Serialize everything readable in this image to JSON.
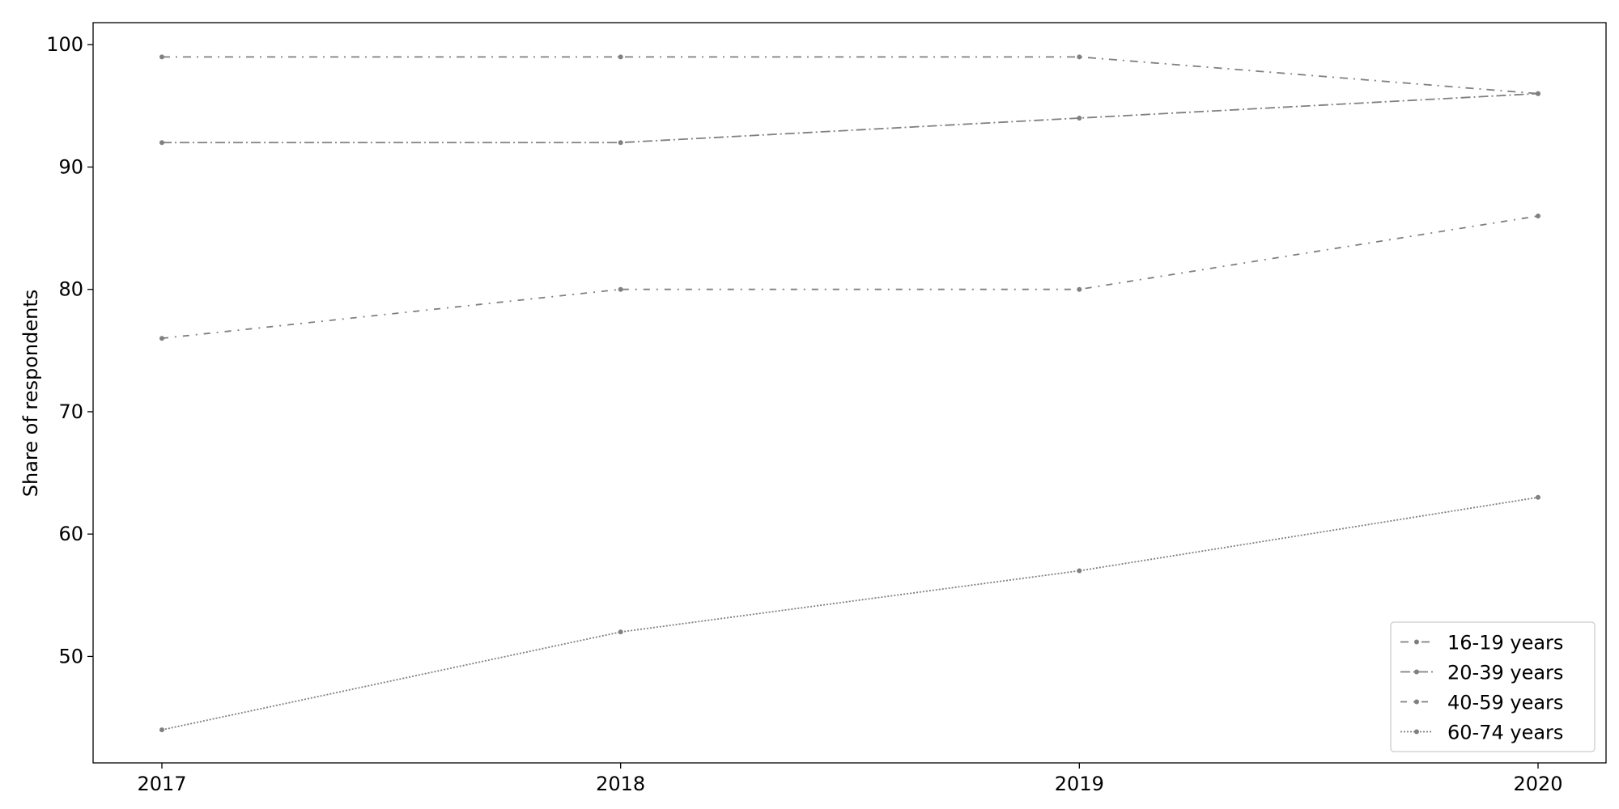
{
  "chart_data": {
    "type": "line",
    "x": [
      "2017",
      "2018",
      "2019",
      "2020"
    ],
    "ylabel": "Share of respondents",
    "xlabel": "",
    "ylim": [
      41.3,
      101.8
    ],
    "yticks": [
      50,
      60,
      70,
      80,
      90,
      100
    ],
    "grid": false,
    "legend_position": "bottom-right",
    "line_color": "#808080",
    "series": [
      {
        "name": "16-19 years",
        "values": [
          99,
          99,
          99,
          96
        ],
        "dash": "dash-dot-wide"
      },
      {
        "name": "20-39 years",
        "values": [
          92,
          92,
          94,
          96
        ],
        "dash": "dash-dot"
      },
      {
        "name": "40-59 years",
        "values": [
          76,
          80,
          80,
          86
        ],
        "dash": "dash-dot-long"
      },
      {
        "name": "60-74 years",
        "values": [
          44,
          52,
          57,
          63
        ],
        "dash": "dotted"
      }
    ]
  }
}
